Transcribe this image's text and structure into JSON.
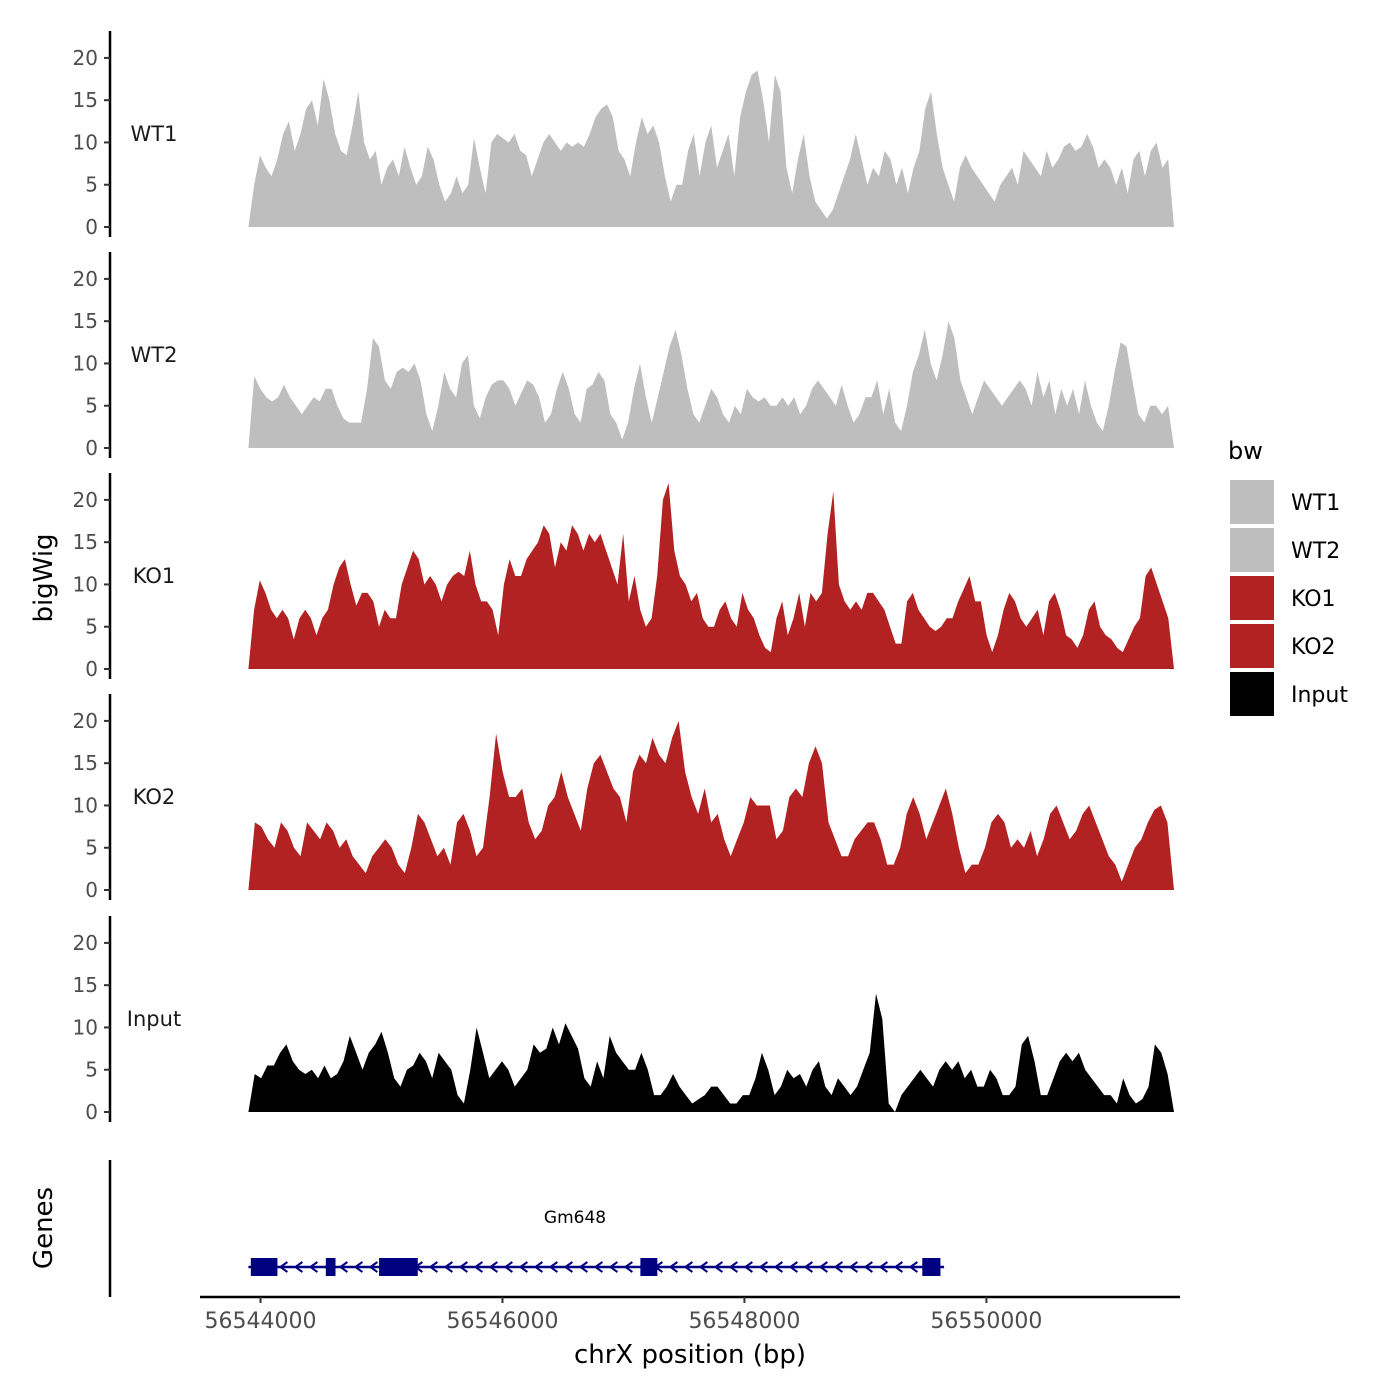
{
  "chart_data": {
    "type": "area",
    "ylabel": "bigWig",
    "genes_label": "Genes",
    "xlabel": "chrX position (bp)",
    "ylim": [
      0,
      22
    ],
    "y_ticks": [
      "0",
      "5",
      "10",
      "15",
      "20"
    ],
    "xlim": [
      56543500,
      56551600
    ],
    "x_ticks": [
      {
        "value": 56544000,
        "label": "56544000"
      },
      {
        "value": 56546000,
        "label": "56546000"
      },
      {
        "value": 56548000,
        "label": "56548000"
      },
      {
        "value": 56550000,
        "label": "56550000"
      }
    ],
    "x_start": 56543900,
    "x_end": 56551550,
    "legend": {
      "title": "bw",
      "entries": [
        {
          "label": "WT1",
          "color": "#bebebe"
        },
        {
          "label": "WT2",
          "color": "#bebebe"
        },
        {
          "label": "KO1",
          "color": "#b22222"
        },
        {
          "label": "KO2",
          "color": "#b22222"
        },
        {
          "label": "Input",
          "color": "#000000"
        }
      ]
    },
    "tracks": [
      {
        "name": "WT1",
        "color": "#bebebe",
        "values": [
          0,
          5,
          8.5,
          7,
          6,
          8,
          11,
          12.5,
          9,
          11,
          14,
          15,
          12,
          17.5,
          15,
          11,
          9,
          8.5,
          12,
          16,
          10,
          8,
          9,
          5,
          7,
          8,
          6,
          9.5,
          7,
          5,
          6,
          9.5,
          8,
          5,
          3,
          4,
          6,
          4,
          5,
          10.5,
          7,
          4,
          10,
          11,
          10.5,
          10,
          11,
          9,
          8.5,
          6,
          8,
          10,
          11,
          10,
          9,
          10,
          9.5,
          10,
          9.5,
          11,
          13,
          14,
          14.5,
          13,
          9,
          8,
          6,
          10,
          13,
          11,
          12,
          10,
          6,
          3,
          5,
          5,
          9,
          11,
          6,
          10,
          12,
          7,
          9,
          11,
          6,
          13,
          16,
          18,
          18.5,
          15,
          10,
          18,
          16,
          7,
          4,
          8,
          11,
          6,
          3,
          2,
          1,
          2,
          4,
          6,
          8,
          11,
          8,
          5,
          7,
          6,
          9,
          8,
          5,
          7,
          4,
          7,
          9,
          14,
          16,
          11,
          7,
          5,
          3,
          7,
          8.5,
          7,
          6,
          5,
          4,
          3,
          5,
          6,
          7,
          5,
          9,
          8,
          7,
          6,
          9,
          7,
          8,
          9.5,
          10,
          9,
          9.5,
          11,
          9.5,
          7,
          8,
          7,
          5,
          7,
          4,
          8,
          9,
          6,
          9,
          10,
          7,
          8,
          0
        ]
      },
      {
        "name": "WT2",
        "color": "#bebebe",
        "values": [
          0,
          8.5,
          7,
          6,
          5.5,
          6,
          7.5,
          6,
          5,
          4,
          5,
          6,
          5.5,
          7,
          7,
          5,
          3.5,
          3,
          3,
          3,
          7,
          13,
          12,
          8,
          7,
          9,
          9.5,
          9,
          10,
          8,
          4,
          2,
          5,
          9,
          7,
          6,
          10,
          11,
          5,
          3.5,
          6,
          7.5,
          8,
          8,
          7,
          5,
          6.5,
          8,
          7.5,
          6,
          3,
          4,
          7,
          9,
          7,
          4,
          3,
          7,
          7.5,
          9,
          8,
          4,
          3,
          1,
          3,
          7,
          10,
          6,
          3,
          6,
          9,
          12,
          14,
          11,
          7,
          4,
          3,
          5,
          7,
          6,
          4,
          3,
          5,
          4,
          7,
          6,
          5.5,
          6,
          5,
          5,
          6,
          5,
          6,
          4,
          5,
          7,
          8,
          7,
          6,
          5,
          7.5,
          5,
          3,
          4,
          6,
          6,
          8,
          4,
          7,
          3,
          2,
          5,
          9,
          11,
          14,
          10,
          8,
          11,
          15,
          13,
          8,
          6,
          4,
          6,
          8,
          7,
          6,
          5,
          6,
          7,
          8,
          7,
          5,
          9,
          6,
          8,
          4,
          7,
          5,
          7,
          4,
          8,
          5,
          3,
          2,
          5,
          9,
          12.5,
          12,
          8,
          4,
          3,
          5,
          5,
          4,
          5,
          0
        ]
      },
      {
        "name": "KO1",
        "color": "#b22222",
        "values": [
          0,
          7,
          10.5,
          9,
          7,
          6,
          7,
          6,
          3.5,
          6,
          7,
          6,
          4,
          6,
          7,
          10,
          12,
          13,
          10,
          7.5,
          9,
          9,
          8,
          5,
          7,
          6,
          6,
          10,
          12,
          14,
          13,
          10,
          11,
          10,
          8,
          10,
          11,
          11.5,
          11,
          14,
          10,
          8,
          8,
          7,
          4,
          10,
          13,
          11,
          11,
          13,
          14,
          15,
          17,
          16,
          12,
          15,
          14,
          17,
          16,
          14,
          16,
          15,
          16,
          14,
          12,
          10,
          16,
          8,
          11,
          7,
          5,
          6,
          11,
          20,
          22,
          14,
          11,
          10,
          8,
          9,
          6,
          5,
          5,
          7,
          8,
          6,
          5,
          9,
          7,
          6,
          4,
          2.5,
          2,
          6,
          8,
          4,
          6,
          9,
          5,
          9,
          8,
          9,
          16,
          21,
          10,
          8,
          7,
          8,
          7,
          9,
          9,
          8,
          7,
          5,
          3,
          3,
          8,
          9,
          7,
          6,
          5,
          4.5,
          5,
          6,
          6,
          8,
          9.5,
          11,
          8,
          8,
          4,
          2,
          4,
          7,
          9,
          8,
          6,
          5,
          6,
          7,
          4,
          8,
          9,
          7,
          4,
          3.5,
          2.5,
          4,
          7,
          8,
          5,
          4,
          3.5,
          2.5,
          2,
          3.5,
          5,
          6,
          11,
          12,
          10,
          8,
          6,
          0
        ]
      },
      {
        "name": "KO2",
        "color": "#b22222",
        "values": [
          0,
          8,
          7.5,
          6,
          5,
          8,
          7,
          5,
          4,
          8,
          7,
          6,
          8,
          7,
          5,
          6,
          4,
          3,
          2,
          4,
          5,
          6,
          5,
          3,
          2,
          5,
          9,
          8,
          6,
          4,
          5,
          3,
          8,
          9,
          7,
          4,
          5,
          11,
          18.5,
          14,
          11,
          11,
          12,
          8,
          6,
          7,
          10,
          11,
          14,
          11,
          9,
          7,
          12,
          15,
          16,
          14,
          12,
          11,
          8,
          14,
          16,
          15,
          18,
          16,
          15,
          18,
          20,
          14,
          11,
          9,
          12,
          8,
          9,
          6,
          4,
          6,
          8,
          11,
          10,
          10,
          10,
          6,
          7,
          11,
          12,
          11,
          15,
          17,
          15,
          8,
          6,
          4,
          4,
          6,
          7,
          8,
          8,
          6,
          3,
          3,
          5,
          9,
          11,
          9,
          6,
          8,
          10,
          12,
          9,
          5,
          2,
          3,
          3,
          5,
          8,
          9,
          8,
          5,
          6,
          5,
          7,
          4,
          6,
          9,
          10,
          8,
          6,
          7,
          9,
          10,
          8,
          6,
          4,
          3,
          1,
          3,
          5,
          6,
          8,
          9.5,
          10,
          8,
          0
        ]
      },
      {
        "name": "Input",
        "color": "#000000",
        "values": [
          0,
          4.5,
          4,
          5.5,
          5.5,
          7,
          8,
          6,
          5,
          4.5,
          5,
          4,
          5.5,
          4,
          4.5,
          6,
          9,
          7,
          5,
          7,
          8,
          9.5,
          7,
          4,
          3,
          5,
          5.5,
          7,
          6,
          4,
          7,
          6,
          5,
          2,
          1,
          5,
          10,
          7,
          4,
          5,
          6,
          5,
          3,
          4,
          5,
          8,
          7,
          7.5,
          10,
          8,
          10.5,
          9,
          7.5,
          4,
          3,
          6,
          4,
          9,
          7,
          6,
          5,
          5,
          7,
          5,
          2,
          2,
          3,
          4.5,
          3,
          2,
          1,
          1.5,
          2,
          3,
          3,
          2,
          1,
          1,
          2,
          2,
          4,
          7,
          5,
          2,
          3,
          5,
          4,
          4.5,
          3,
          5,
          6,
          3,
          2,
          4,
          3,
          2,
          3,
          5,
          7,
          14,
          11,
          1,
          0,
          2,
          3,
          4,
          5,
          4,
          3,
          5,
          6,
          5,
          6,
          4,
          5,
          3,
          3,
          5,
          4,
          2,
          2,
          3,
          8,
          9,
          6,
          2,
          2,
          4,
          6,
          7,
          6,
          7,
          5,
          4,
          3,
          2,
          2,
          1,
          4,
          2,
          1,
          1.5,
          3,
          8,
          7,
          4.5,
          0
        ]
      }
    ],
    "gene": {
      "name": "Gm648",
      "start": 56543900,
      "end": 56549650,
      "strand": "-",
      "exons": [
        {
          "start": 56543920,
          "end": 56544140
        },
        {
          "start": 56544540,
          "end": 56544620
        },
        {
          "start": 56544980,
          "end": 56545300
        },
        {
          "start": 56547140,
          "end": 56547280
        },
        {
          "start": 56549470,
          "end": 56549620
        }
      ]
    }
  }
}
